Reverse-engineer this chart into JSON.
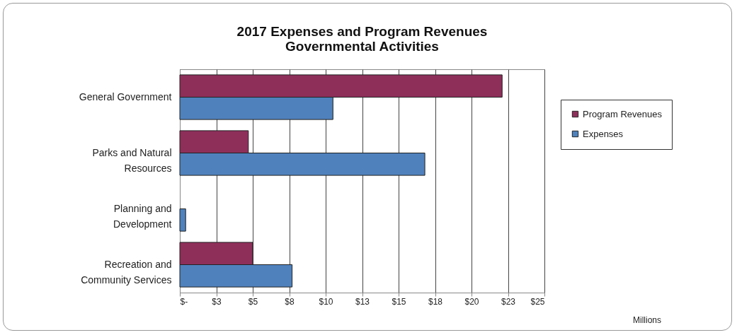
{
  "chart_data": {
    "type": "bar",
    "orientation": "horizontal",
    "title": "2017 Expenses and Program Revenues\nGovernmental Activities",
    "annotations": [
      "Millions"
    ],
    "categories": [
      "General Government",
      "Parks and Natural Resources",
      "Planning and Development",
      "Recreation and Community Services"
    ],
    "series": [
      {
        "name": "Program Revenues",
        "color": "#8e2f5a",
        "values": [
          22.1,
          4.7,
          null,
          5.0
        ]
      },
      {
        "name": "Expenses",
        "color": "#4f81bd",
        "values": [
          10.5,
          16.8,
          0.4,
          7.7
        ]
      }
    ],
    "xlim": [
      0,
      25
    ],
    "xticks": [
      {
        "value": 0,
        "label": "$-"
      },
      {
        "value": 2.5,
        "label": "$3"
      },
      {
        "value": 5,
        "label": "$5"
      },
      {
        "value": 7.5,
        "label": "$8"
      },
      {
        "value": 10,
        "label": "$10"
      },
      {
        "value": 12.5,
        "label": "$13"
      },
      {
        "value": 15,
        "label": "$15"
      },
      {
        "value": 17.5,
        "label": "$18"
      },
      {
        "value": 20,
        "label": "$20"
      },
      {
        "value": 22.5,
        "label": "$23"
      },
      {
        "value": 25,
        "label": "$25"
      }
    ],
    "grid": "x",
    "legend": "right"
  }
}
